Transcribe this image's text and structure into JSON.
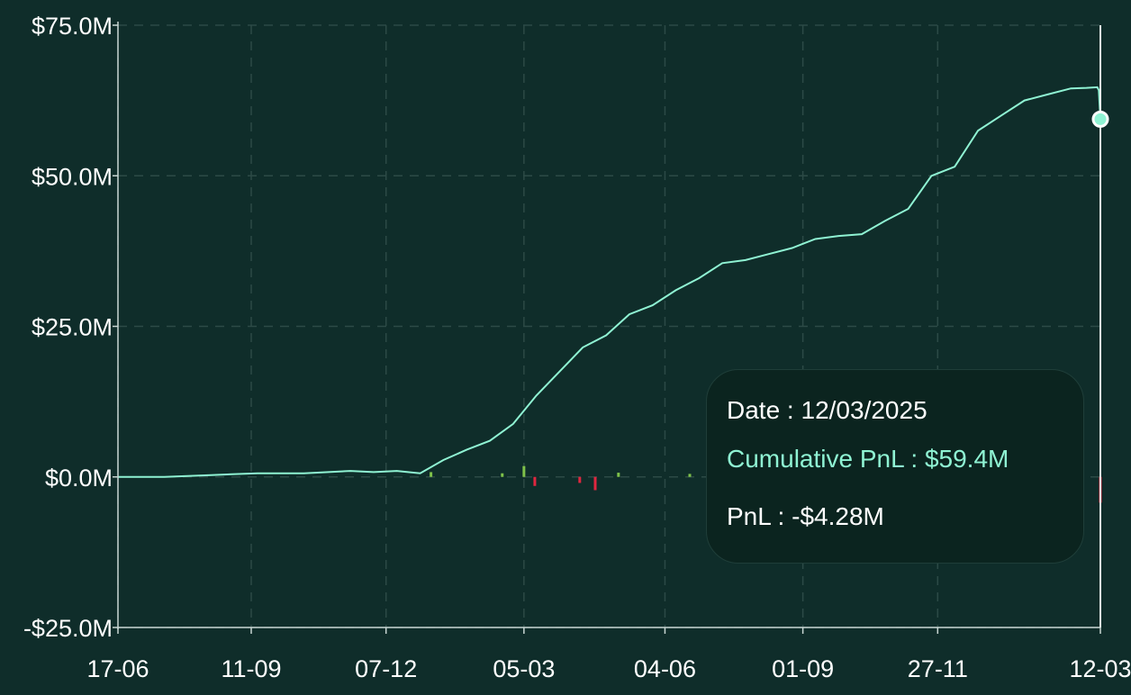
{
  "colors": {
    "background": "#0f2d2a",
    "line": "#8ff3d3",
    "gain_bar": "#7fc24a",
    "loss_bar": "#e0263f",
    "axis": "#c8d6d3",
    "grid": "#2c4a46",
    "tooltip_bg": "#0b241f"
  },
  "tooltip": {
    "date_label": "Date",
    "date_value": "12/03/2025",
    "cum_label": "Cumulative PnL",
    "cum_value": "$59.4M",
    "pnl_label": "PnL",
    "pnl_value": "-$4.28M",
    "separator": " : "
  },
  "chart_data": {
    "type": "line",
    "title": "",
    "xlabel": "",
    "ylabel": "",
    "grid": true,
    "ylim": [
      -25,
      75
    ],
    "yticks": [
      75,
      50,
      25,
      0,
      -25
    ],
    "ytick_labels": [
      "$75.0M",
      "$50.0M",
      "$25.0M",
      "$0.0M",
      "-$25.0M"
    ],
    "xlim": [
      "2023-06-17",
      "2025-03-12"
    ],
    "xticks": [
      "2023-06-17",
      "2023-09-11",
      "2023-12-07",
      "2024-03-05",
      "2024-06-04",
      "2024-09-01",
      "2024-11-27",
      "2025-03-12"
    ],
    "xtick_labels": [
      "17-06",
      "11-09",
      "07-12",
      "05-03",
      "04-06",
      "01-09",
      "27-11",
      "12-03"
    ],
    "series": [
      {
        "type": "line",
        "x": [
          "2023-06-17",
          "2023-07-17",
          "2023-08-16",
          "2023-09-15",
          "2023-10-15",
          "2023-11-14",
          "2023-11-29",
          "2023-12-14",
          "2023-12-29",
          "2024-01-13",
          "2024-01-28",
          "2024-02-12",
          "2024-02-27",
          "2024-03-13",
          "2024-03-28",
          "2024-04-12",
          "2024-04-27",
          "2024-05-12",
          "2024-05-27",
          "2024-06-11",
          "2024-06-26",
          "2024-07-11",
          "2024-07-26",
          "2024-08-10",
          "2024-08-25",
          "2024-09-09",
          "2024-09-24",
          "2024-10-09",
          "2024-10-24",
          "2024-11-08",
          "2024-11-23",
          "2024-12-08",
          "2024-12-23",
          "2025-01-07",
          "2025-01-22",
          "2025-02-06",
          "2025-02-21",
          "2025-03-03",
          "2025-03-10",
          "2025-03-11",
          "2025-03-12"
        ],
        "values": [
          0.0,
          0.0,
          0.3,
          0.6,
          0.6,
          1.0,
          0.8,
          1.0,
          0.6,
          2.8,
          4.5,
          6.0,
          8.8,
          13.5,
          17.5,
          21.5,
          23.5,
          27.0,
          28.5,
          31.0,
          33.0,
          35.5,
          36.0,
          37.0,
          38.0,
          39.5,
          40.0,
          40.3,
          42.5,
          44.5,
          50.0,
          51.5,
          57.5,
          60.0,
          62.5,
          63.5,
          64.5,
          64.6,
          64.7,
          64.2,
          59.4
        ]
      },
      {
        "type": "bar",
        "name": "PnL",
        "x": [
          "2024-01-05",
          "2024-02-20",
          "2024-03-05",
          "2024-03-12",
          "2024-04-10",
          "2024-04-20",
          "2024-05-05",
          "2024-06-20",
          "2025-03-12"
        ],
        "values": [
          0.8,
          0.6,
          1.8,
          -1.5,
          -1.0,
          -2.2,
          0.7,
          0.5,
          -4.28
        ]
      }
    ],
    "highlight": {
      "x": "2025-03-12",
      "y": 59.4
    }
  }
}
